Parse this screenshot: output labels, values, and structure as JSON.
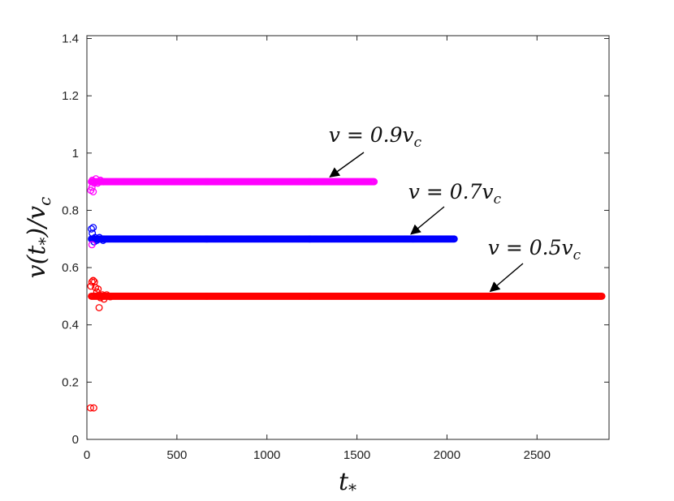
{
  "chart_data": {
    "type": "scatter",
    "title": "",
    "xlabel": "t_*",
    "ylabel": "v(t_*)/v_c",
    "xlim": [
      0,
      2900
    ],
    "ylim": [
      0,
      1.41
    ],
    "xticks": [
      "0",
      "500",
      "1000",
      "1500",
      "2000",
      "2500"
    ],
    "yticks": [
      "0",
      "0.2",
      "0.4",
      "0.6",
      "0.8",
      "1",
      "1.2",
      "1.4"
    ],
    "xtick_values": [
      0,
      500,
      1000,
      1500,
      2000,
      2500
    ],
    "ytick_values": [
      0,
      0.2,
      0.4,
      0.6,
      0.8,
      1.0,
      1.2,
      1.4
    ],
    "grid": false,
    "series": [
      {
        "label": "v = 0.5v_c",
        "color": "#ff0000",
        "steady_value": 0.5,
        "x_end": 2860,
        "transient": [
          [
            20,
            0.11
          ],
          [
            38,
            0.11
          ],
          [
            22,
            0.535
          ],
          [
            28,
            0.55
          ],
          [
            35,
            0.555
          ],
          [
            42,
            0.55
          ],
          [
            48,
            0.53
          ],
          [
            55,
            0.515
          ],
          [
            62,
            0.525
          ],
          [
            68,
            0.46
          ],
          [
            75,
            0.495
          ],
          [
            85,
            0.505
          ],
          [
            95,
            0.49
          ],
          [
            110,
            0.505
          ],
          [
            130,
            0.498
          ]
        ]
      },
      {
        "label": "v = 0.7v_c",
        "color": "#0000ff",
        "steady_value": 0.7,
        "x_end": 2040,
        "transient": [
          [
            25,
            0.735
          ],
          [
            35,
            0.74
          ],
          [
            30,
            0.72
          ],
          [
            45,
            0.705
          ],
          [
            40,
            0.69
          ],
          [
            55,
            0.695
          ],
          [
            70,
            0.705
          ],
          [
            90,
            0.695
          ]
        ]
      },
      {
        "label": "v = 0.9v_c",
        "color": "#ff00ff",
        "steady_value": 0.9,
        "x_end": 1595,
        "transient": [
          [
            22,
            0.87
          ],
          [
            28,
            0.88
          ],
          [
            35,
            0.865
          ],
          [
            30,
            0.905
          ],
          [
            40,
            0.895
          ],
          [
            50,
            0.91
          ],
          [
            60,
            0.895
          ],
          [
            75,
            0.905
          ],
          [
            28,
            0.68
          ]
        ]
      }
    ],
    "annotations": [
      {
        "text": "v = 0.9v_c",
        "target": [
          1350,
          0.9
        ]
      },
      {
        "text": "v = 0.7v_c",
        "target": [
          1800,
          0.7
        ]
      },
      {
        "text": "v = 0.5v_c",
        "target": [
          2240,
          0.5
        ]
      }
    ]
  }
}
